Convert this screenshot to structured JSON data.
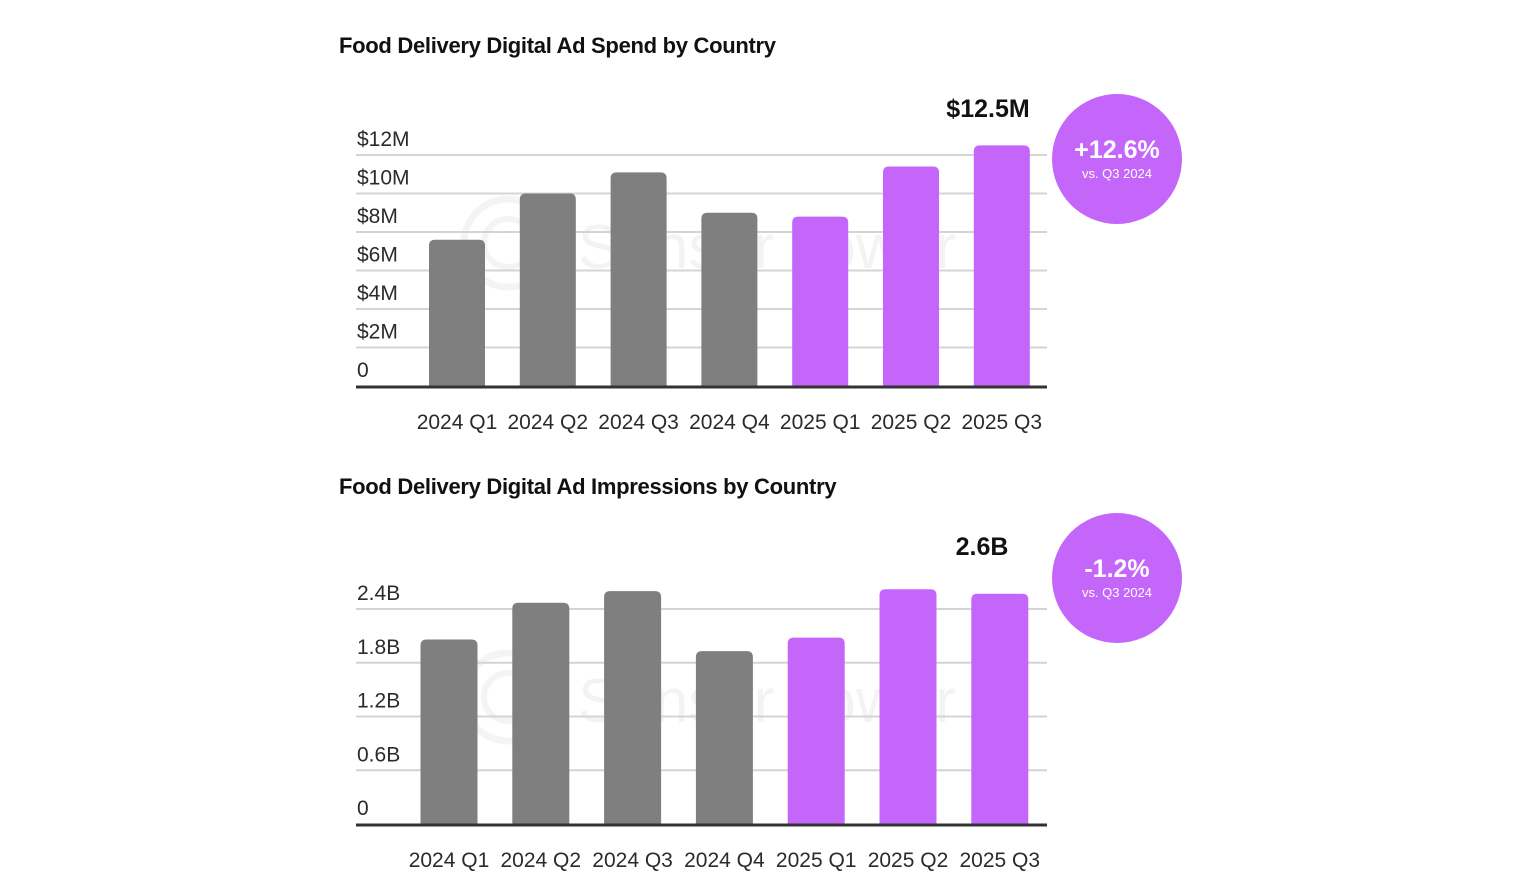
{
  "colors": {
    "past": "#7f7f7f",
    "current": "#c566fa",
    "grid": "#d4d4d4",
    "axis": "#333333",
    "badge": "#c566fa"
  },
  "watermark": "Sensor Tower",
  "chart_data": [
    {
      "type": "bar",
      "title": "Food Delivery Digital Ad Spend by Country",
      "xlabel": "",
      "ylabel": "",
      "categories": [
        "2024 Q1",
        "2024 Q2",
        "2024 Q3",
        "2024 Q4",
        "2025 Q1",
        "2025 Q2",
        "2025 Q3"
      ],
      "values": [
        7.6,
        10.0,
        11.1,
        9.0,
        8.8,
        11.4,
        12.5
      ],
      "unit": "$M",
      "bar_groups": [
        "2024",
        "2024",
        "2024",
        "2024",
        "2025",
        "2025",
        "2025"
      ],
      "ylim": [
        0,
        12
      ],
      "yticks": [
        0,
        2,
        4,
        6,
        8,
        10,
        12
      ],
      "ytick_labels": [
        "0",
        "$2M",
        "$4M",
        "$6M",
        "$8M",
        "$10M",
        "$12M"
      ],
      "grid": true,
      "highlight_label": "$12.5M",
      "badge": {
        "value": "+12.6%",
        "subtitle": "vs. Q3 2024"
      }
    },
    {
      "type": "bar",
      "title": "Food Delivery Digital Ad Impressions by Country",
      "xlabel": "",
      "ylabel": "",
      "categories": [
        "2024 Q1",
        "2024 Q2",
        "2024 Q3",
        "2024 Q4",
        "2025 Q1",
        "2025 Q2",
        "2025 Q3"
      ],
      "values": [
        2.06,
        2.47,
        2.6,
        1.93,
        2.08,
        2.62,
        2.57
      ],
      "unit": "B",
      "bar_groups": [
        "2024",
        "2024",
        "2024",
        "2024",
        "2025",
        "2025",
        "2025"
      ],
      "ylim": [
        0,
        2.4
      ],
      "yticks": [
        0,
        0.6,
        1.2,
        1.8,
        2.4
      ],
      "ytick_labels": [
        "0",
        "0.6B",
        "1.2B",
        "1.8B",
        "2.4B"
      ],
      "grid": true,
      "highlight_label": "2.6B",
      "badge": {
        "value": "-1.2%",
        "subtitle": "vs. Q3 2024"
      }
    }
  ]
}
